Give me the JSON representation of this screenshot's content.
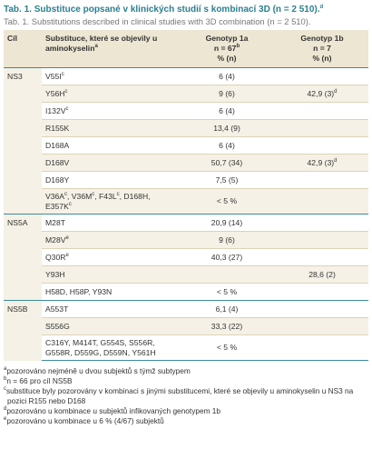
{
  "title": {
    "text": "Tab. 1. Substituce popsané v klinických studií s kombinací 3D (n = 2 510).",
    "sup": "d"
  },
  "subtitle": "Tab. 1. Substitutions described in clinical studies with 3D combination (n = 2 510).",
  "header": {
    "target": "Cíl",
    "substitution": "Substituce, které se objevily u aminokyselin",
    "substitution_sup": "a",
    "g1a": {
      "name": "Genotyp 1a",
      "n": "n = 67",
      "n_sup": "b",
      "unit": "% (n)"
    },
    "g1b": {
      "name": "Genotyp 1b",
      "n": "n = 7",
      "unit": "% (n)"
    }
  },
  "groups": [
    {
      "target": "NS3",
      "rows": [
        {
          "sub": [
            [
              "V55I",
              "c"
            ]
          ],
          "g1a": "6 (4)"
        },
        {
          "sub": [
            [
              "Y56H",
              "c"
            ]
          ],
          "g1a": "9 (6)",
          "g1b": "42,9 (3)",
          "g1b_sup": "d"
        },
        {
          "sub": [
            [
              "I132V",
              "c"
            ]
          ],
          "g1a": "6 (4)"
        },
        {
          "sub": [
            [
              "R155K"
            ]
          ],
          "g1a": "13,4 (9)"
        },
        {
          "sub": [
            [
              "D168A"
            ]
          ],
          "g1a": "6 (4)"
        },
        {
          "sub": [
            [
              "D168V"
            ]
          ],
          "g1a": "50,7 (34)",
          "g1b": "42,9 (3)",
          "g1b_sup": "d"
        },
        {
          "sub": [
            [
              "D168Y"
            ]
          ],
          "g1a": "7,5 (5)"
        },
        {
          "sub": [
            [
              "V36A",
              "c"
            ],
            [
              ", V36M",
              "c"
            ],
            [
              ", F43L",
              "c"
            ],
            [
              ", D168H, E357K",
              "c"
            ]
          ],
          "g1a": "< 5 %"
        }
      ]
    },
    {
      "target": "NS5A",
      "rows": [
        {
          "sub": [
            [
              "M28T"
            ]
          ],
          "g1a": "20,9 (14)"
        },
        {
          "sub": [
            [
              "M28V",
              "e"
            ]
          ],
          "g1a": "9 (6)"
        },
        {
          "sub": [
            [
              "Q30R",
              "e"
            ]
          ],
          "g1a": "40,3 (27)"
        },
        {
          "sub": [
            [
              "Y93H"
            ]
          ],
          "g1b": "28,6 (2)"
        },
        {
          "sub": [
            [
              "H58D, H58P, Y93N"
            ]
          ],
          "g1a": "< 5 %"
        }
      ]
    },
    {
      "target": "NS5B",
      "rows": [
        {
          "sub": [
            [
              "A553T"
            ]
          ],
          "g1a": "6,1 (4)"
        },
        {
          "sub": [
            [
              "S556G"
            ]
          ],
          "g1a": "33,3 (22)"
        },
        {
          "sub": [
            [
              "C316Y, M414T, G554S, S556R, G558R, D559G, D559N, Y561H"
            ]
          ],
          "g1a": "< 5 %"
        }
      ]
    }
  ],
  "footnotes": [
    {
      "mark": "a",
      "text": "pozorováno nejméně u dvou subjektů s týmž subtypem"
    },
    {
      "mark": "b",
      "text": "n = 66 pro cíl NS5B"
    },
    {
      "mark": "c",
      "text": "substituce byly pozorovány v kombinaci s jinými substitucemi, které se objevily u aminokyselin u NS3 na pozici R155 nebo D168"
    },
    {
      "mark": "d",
      "text": "pozorováno u kombinace u subjektů infikovaných genotypem 1b"
    },
    {
      "mark": "e",
      "text": "pozorováno u kombinace u 6 % (4/67) subjektů"
    }
  ]
}
